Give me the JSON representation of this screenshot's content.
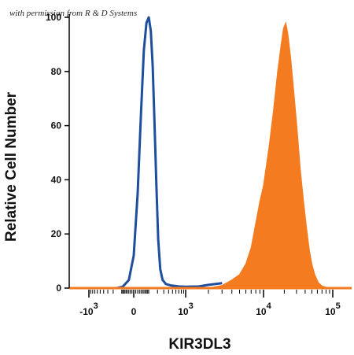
{
  "watermark": "with permission from R & D Systems",
  "chart_data": {
    "type": "area",
    "xlabel": "KIR3DL3",
    "ylabel": "Relative Cell Number",
    "xscale": "biexponential",
    "ylim": [
      0,
      100
    ],
    "yticks": [
      {
        "value": 0,
        "label": "0"
      },
      {
        "value": 20,
        "label": "20"
      },
      {
        "value": 40,
        "label": "40"
      },
      {
        "value": 60,
        "label": "60"
      },
      {
        "value": 80,
        "label": "80"
      },
      {
        "value": 100,
        "label": "100"
      }
    ],
    "xticks": [
      {
        "value": -1000,
        "base": "-10",
        "exp": "3"
      },
      {
        "value": 0,
        "base": "0",
        "exp": ""
      },
      {
        "value": 1000,
        "base": "10",
        "exp": "3"
      },
      {
        "value": 10000,
        "base": "10",
        "exp": "4"
      },
      {
        "value": 100000,
        "base": "10",
        "exp": "5"
      }
    ],
    "grid": false,
    "legend": "none",
    "series": [
      {
        "style": "outline",
        "color": "#1f4e9c",
        "points": [
          [
            -150,
            0
          ],
          [
            -80,
            0.5
          ],
          [
            -30,
            3
          ],
          [
            0,
            12
          ],
          [
            20,
            35
          ],
          [
            40,
            65
          ],
          [
            60,
            88
          ],
          [
            80,
            98
          ],
          [
            100,
            100
          ],
          [
            120,
            95
          ],
          [
            140,
            82
          ],
          [
            160,
            62
          ],
          [
            185,
            38
          ],
          [
            210,
            18
          ],
          [
            240,
            7
          ],
          [
            280,
            3
          ],
          [
            340,
            1.5
          ],
          [
            450,
            1
          ],
          [
            700,
            0.6
          ],
          [
            1000,
            0.5
          ],
          [
            1500,
            0.6
          ],
          [
            2000,
            1.2
          ],
          [
            3000,
            1.8
          ]
        ]
      },
      {
        "style": "filled",
        "color": "#f47b20",
        "points": [
          [
            2000,
            0
          ],
          [
            3000,
            1
          ],
          [
            4000,
            3
          ],
          [
            5000,
            5
          ],
          [
            6000,
            9
          ],
          [
            7000,
            15
          ],
          [
            8000,
            24
          ],
          [
            9000,
            32
          ],
          [
            10000,
            38
          ],
          [
            12000,
            52
          ],
          [
            14000,
            66
          ],
          [
            16000,
            80
          ],
          [
            18000,
            90
          ],
          [
            19500,
            96
          ],
          [
            21000,
            98
          ],
          [
            22500,
            94
          ],
          [
            25000,
            84
          ],
          [
            28000,
            70
          ],
          [
            31000,
            57
          ],
          [
            34000,
            44
          ],
          [
            38000,
            32
          ],
          [
            42000,
            22
          ],
          [
            46000,
            14
          ],
          [
            50000,
            9
          ],
          [
            55000,
            5
          ],
          [
            62000,
            2
          ],
          [
            70000,
            0.8
          ],
          [
            80000,
            0.3
          ],
          [
            90000,
            0.2
          ],
          [
            100000,
            0.3
          ]
        ]
      }
    ]
  }
}
